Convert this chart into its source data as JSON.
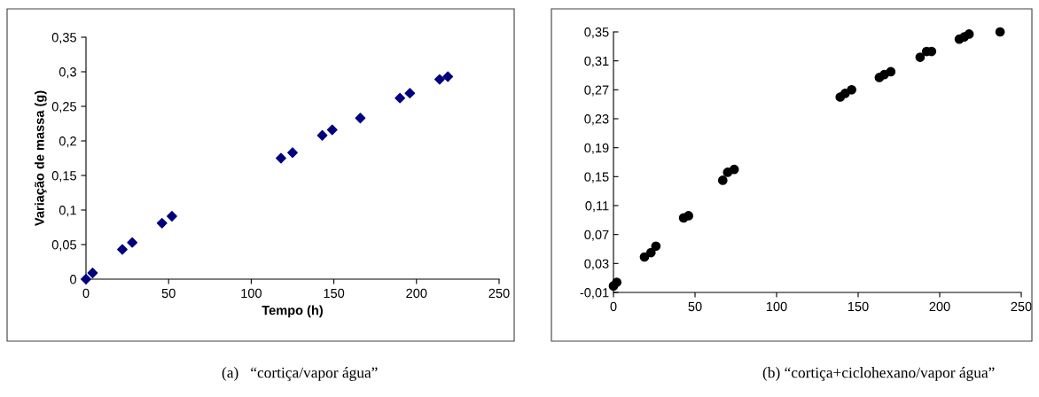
{
  "chart_data": [
    {
      "type": "scatter",
      "xlabel": "Tempo (h)",
      "ylabel": "Variação de massa (g)",
      "x": [
        0,
        4,
        22,
        28,
        46,
        52,
        118,
        125,
        143,
        149,
        166,
        190,
        196,
        214,
        219
      ],
      "series": [
        {
          "color": "#00007f",
          "values": [
            0,
            0.009,
            0.043,
            0.053,
            0.081,
            0.091,
            0.175,
            0.183,
            0.208,
            0.216,
            0.233,
            0.262,
            0.269,
            0.289,
            0.293
          ]
        }
      ],
      "marker": "diamond",
      "grid": false,
      "legend": false,
      "xlim": [
        0,
        250
      ],
      "xticks": [
        0,
        50,
        100,
        150,
        200,
        250
      ],
      "ylim": [
        0,
        0.35
      ],
      "yticks": [
        {
          "value": 0,
          "label": "0"
        },
        {
          "value": 0.05,
          "label": "0,05"
        },
        {
          "value": 0.1,
          "label": "0,1"
        },
        {
          "value": 0.15,
          "label": "0,15"
        },
        {
          "value": 0.2,
          "label": "0,2"
        },
        {
          "value": 0.25,
          "label": "0,25"
        },
        {
          "value": 0.3,
          "label": "0,3"
        },
        {
          "value": 0.35,
          "label": "0,35"
        }
      ],
      "annotations": [
        "(a)   “cortiça/vapor água”"
      ]
    },
    {
      "type": "scatter",
      "x": [
        0,
        2,
        19,
        23,
        26,
        43,
        46,
        67,
        70,
        74,
        139,
        142,
        146,
        163,
        166,
        170,
        188,
        192,
        195,
        212,
        215,
        218,
        237
      ],
      "series": [
        {
          "color": "#000000",
          "values": [
            -0.001,
            0.004,
            0.039,
            0.045,
            0.054,
            0.093,
            0.096,
            0.145,
            0.156,
            0.16,
            0.26,
            0.265,
            0.27,
            0.287,
            0.291,
            0.295,
            0.315,
            0.323,
            0.323,
            0.34,
            0.343,
            0.347,
            0.35
          ]
        }
      ],
      "marker": "circle",
      "grid": false,
      "legend": false,
      "xlim": [
        0,
        250
      ],
      "xticks": [
        0,
        50,
        100,
        150,
        200,
        250
      ],
      "ylim": [
        -0.01,
        0.35
      ],
      "yticks": [
        {
          "value": -0.01,
          "label": "-0,01"
        },
        {
          "value": 0.03,
          "label": "0,03"
        },
        {
          "value": 0.07,
          "label": "0,07"
        },
        {
          "value": 0.11,
          "label": "0,11"
        },
        {
          "value": 0.15,
          "label": "0,15"
        },
        {
          "value": 0.19,
          "label": "0,19"
        },
        {
          "value": 0.23,
          "label": "0,23"
        },
        {
          "value": 0.27,
          "label": "0,27"
        },
        {
          "value": 0.31,
          "label": "0,31"
        },
        {
          "value": 0.35,
          "label": "0,35"
        }
      ],
      "annotations": [
        "(b) “cortiça+ciclohexano/vapor água”"
      ]
    }
  ]
}
